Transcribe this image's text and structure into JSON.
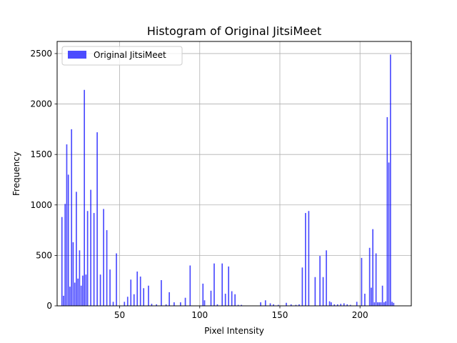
{
  "chart_data": {
    "type": "bar",
    "title": "Histogram of Original JitsiMeet",
    "xlabel": "Pixel Intensity",
    "ylabel": "Frequency",
    "xlim": [
      11,
      232
    ],
    "ylim": [
      0,
      2620
    ],
    "xticks": [
      50,
      100,
      150,
      200
    ],
    "yticks": [
      0,
      500,
      1000,
      1500,
      2000,
      2500
    ],
    "grid": true,
    "legend_position": "top-left",
    "bar_width": 0.75,
    "series": [
      {
        "name": "Original JitsiMeet",
        "color": "#0000ff",
        "opacity": 0.7,
        "x": [
          14,
          15,
          16,
          17,
          18,
          19,
          20,
          21,
          22,
          23,
          24,
          25,
          26,
          27,
          28,
          29,
          30,
          32,
          34,
          36,
          38,
          40,
          42,
          44,
          46,
          48,
          53,
          55,
          57,
          59,
          61,
          63,
          65,
          68,
          70,
          73,
          76,
          79,
          81,
          84,
          88,
          91,
          94,
          102,
          103,
          107,
          109,
          111,
          114,
          116,
          118,
          120,
          122,
          124,
          126,
          138,
          141,
          144,
          146,
          149,
          154,
          157,
          160,
          162,
          164,
          166,
          168,
          172,
          175,
          177,
          179,
          181,
          182,
          184,
          186,
          188,
          190,
          192,
          194,
          198,
          201,
          203,
          206,
          207,
          208,
          209,
          210,
          211,
          212,
          213,
          214,
          215,
          216,
          217,
          218,
          219,
          220,
          221
        ],
        "values": [
          880,
          100,
          1010,
          1600,
          1300,
          190,
          1750,
          630,
          230,
          1130,
          270,
          550,
          200,
          300,
          2140,
          310,
          940,
          1150,
          920,
          1720,
          310,
          960,
          750,
          360,
          40,
          520,
          40,
          90,
          260,
          115,
          340,
          290,
          175,
          200,
          20,
          15,
          255,
          15,
          135,
          35,
          35,
          80,
          400,
          220,
          55,
          150,
          420,
          15,
          420,
          120,
          390,
          145,
          115,
          10,
          10,
          35,
          55,
          25,
          15,
          10,
          30,
          15,
          10,
          15,
          380,
          920,
          940,
          285,
          495,
          285,
          550,
          45,
          35,
          15,
          15,
          20,
          25,
          15,
          10,
          40,
          475,
          120,
          575,
          180,
          760,
          35,
          520,
          35,
          35,
          35,
          200,
          35,
          45,
          1870,
          1420,
          2490,
          40,
          30
        ]
      }
    ]
  }
}
